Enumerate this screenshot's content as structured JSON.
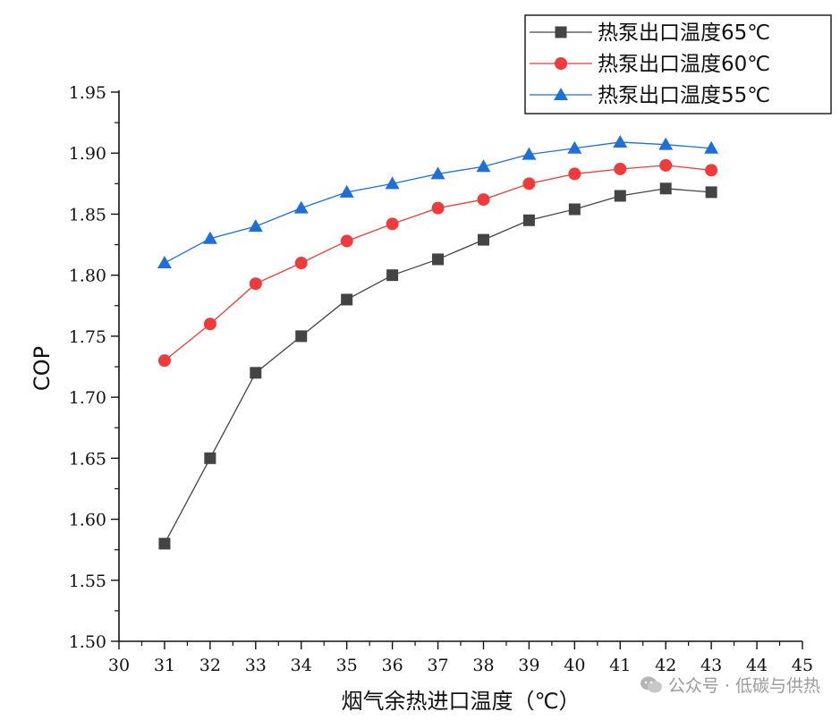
{
  "chart_data": {
    "type": "line",
    "xlabel": "烟气余热进口温度（℃）",
    "ylabel": "COP",
    "xlim": [
      30,
      45
    ],
    "ylim": [
      1.5,
      1.95
    ],
    "x_ticks": [
      "30",
      "31",
      "32",
      "33",
      "34",
      "35",
      "36",
      "37",
      "38",
      "39",
      "40",
      "41",
      "42",
      "43",
      "44",
      "45"
    ],
    "y_ticks": [
      "1.50",
      "1.55",
      "1.60",
      "1.65",
      "1.70",
      "1.75",
      "1.80",
      "1.85",
      "1.90",
      "1.95"
    ],
    "x": [
      31,
      32,
      33,
      34,
      35,
      36,
      37,
      38,
      39,
      40,
      41,
      42,
      43
    ],
    "series": [
      {
        "name": "热泵出口温度65℃",
        "marker": "square",
        "color": "#444444",
        "values": [
          1.58,
          1.65,
          1.72,
          1.75,
          1.78,
          1.8,
          1.813,
          1.829,
          1.845,
          1.854,
          1.865,
          1.871,
          1.868
        ]
      },
      {
        "name": "热泵出口温度60℃",
        "marker": "circle",
        "color": "#ee3b3b",
        "values": [
          1.73,
          1.76,
          1.793,
          1.81,
          1.828,
          1.842,
          1.855,
          1.862,
          1.875,
          1.883,
          1.887,
          1.89,
          1.886
        ]
      },
      {
        "name": "热泵出口温度55℃",
        "marker": "triangle",
        "color": "#1e6fd9",
        "values": [
          1.81,
          1.83,
          1.84,
          1.855,
          1.868,
          1.875,
          1.883,
          1.889,
          1.899,
          1.904,
          1.909,
          1.907,
          1.904
        ]
      }
    ],
    "legend_position": "top-right",
    "grid": false
  },
  "watermark": {
    "text": "公众号 · 低碳与供热",
    "icon": "wechat-icon"
  }
}
